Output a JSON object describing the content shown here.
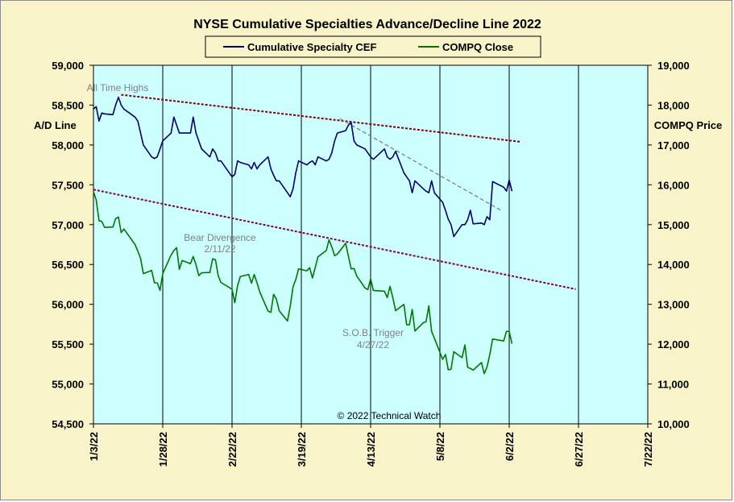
{
  "chart_data": {
    "type": "line",
    "title": "NYSE Cumulative Specialties Advance/Decline Line 2022",
    "ylabel": "A/D Line",
    "y2label": "COMPQ Price",
    "ylim": [
      54500,
      59000
    ],
    "y2lim": [
      10000,
      19000
    ],
    "y_ticks": [
      "54,500",
      "55,000",
      "55,500",
      "56,000",
      "56,500",
      "57,000",
      "57,500",
      "58,000",
      "58,500",
      "59,000"
    ],
    "y2_ticks": [
      "10,000",
      "11,000",
      "12,000",
      "13,000",
      "14,000",
      "15,000",
      "16,000",
      "17,000",
      "18,000",
      "19,000"
    ],
    "x_ticks": [
      "1/3/22",
      "1/28/22",
      "2/22/22",
      "3/19/22",
      "4/13/22",
      "5/8/22",
      "6/2/22",
      "6/27/22",
      "7/22/22"
    ],
    "x_range": [
      "2022-01-03",
      "2022-07-22"
    ],
    "legend": {
      "placement": "top-center",
      "entries": [
        "Cumulative Specialty CEF",
        "COMPQ Close"
      ]
    },
    "copyright": "© 2022 Technical Watch",
    "colors": {
      "ad_line": "#000066",
      "compq": "#007700",
      "plot_bg": "#ccffff",
      "frame_bg": "#f8f3c8",
      "trend": "#800000"
    },
    "series": [
      {
        "name": "Cumulative Specialty CEF",
        "axis": "left",
        "x": [
          "2022-01-03",
          "2022-01-04",
          "2022-01-05",
          "2022-01-06",
          "2022-01-07",
          "2022-01-10",
          "2022-01-11",
          "2022-01-12",
          "2022-01-13",
          "2022-01-14",
          "2022-01-18",
          "2022-01-19",
          "2022-01-20",
          "2022-01-21",
          "2022-01-24",
          "2022-01-25",
          "2022-01-26",
          "2022-01-27",
          "2022-01-28",
          "2022-01-31",
          "2022-02-01",
          "2022-02-02",
          "2022-02-03",
          "2022-02-04",
          "2022-02-07",
          "2022-02-08",
          "2022-02-09",
          "2022-02-10",
          "2022-02-11",
          "2022-02-14",
          "2022-02-15",
          "2022-02-16",
          "2022-02-17",
          "2022-02-18",
          "2022-02-22",
          "2022-02-23",
          "2022-02-24",
          "2022-02-25",
          "2022-02-28",
          "2022-03-01",
          "2022-03-02",
          "2022-03-03",
          "2022-03-04",
          "2022-03-07",
          "2022-03-08",
          "2022-03-09",
          "2022-03-10",
          "2022-03-11",
          "2022-03-14",
          "2022-03-15",
          "2022-03-16",
          "2022-03-17",
          "2022-03-18",
          "2022-03-21",
          "2022-03-22",
          "2022-03-23",
          "2022-03-24",
          "2022-03-25",
          "2022-03-28",
          "2022-03-29",
          "2022-03-30",
          "2022-03-31",
          "2022-04-01",
          "2022-04-04",
          "2022-04-05",
          "2022-04-06",
          "2022-04-07",
          "2022-04-08",
          "2022-04-11",
          "2022-04-12",
          "2022-04-13",
          "2022-04-14",
          "2022-04-18",
          "2022-04-19",
          "2022-04-20",
          "2022-04-21",
          "2022-04-22",
          "2022-04-25",
          "2022-04-26",
          "2022-04-27",
          "2022-04-28",
          "2022-04-29",
          "2022-05-02",
          "2022-05-03",
          "2022-05-04",
          "2022-05-05",
          "2022-05-06",
          "2022-05-09",
          "2022-05-10",
          "2022-05-11",
          "2022-05-12",
          "2022-05-13",
          "2022-05-16",
          "2022-05-17",
          "2022-05-18",
          "2022-05-19",
          "2022-05-20",
          "2022-05-23",
          "2022-05-24",
          "2022-05-25",
          "2022-05-26",
          "2022-05-27",
          "2022-05-31",
          "2022-06-01",
          "2022-06-02",
          "2022-06-03"
        ],
        "values": [
          58450,
          58480,
          58300,
          58400,
          58390,
          58380,
          58500,
          58600,
          58500,
          58450,
          58350,
          58300,
          58150,
          58000,
          57850,
          57830,
          57850,
          57950,
          58050,
          58150,
          58350,
          58250,
          58150,
          58150,
          58150,
          58350,
          58150,
          58050,
          57950,
          57850,
          57950,
          57900,
          57800,
          57800,
          57600,
          57630,
          57800,
          57780,
          57750,
          57700,
          57780,
          57700,
          57750,
          57850,
          57700,
          57620,
          57550,
          57550,
          57400,
          57350,
          57450,
          57650,
          57800,
          57750,
          57780,
          57800,
          57750,
          57850,
          57800,
          57820,
          57900,
          58050,
          58150,
          58180,
          58250,
          58280,
          58050,
          58000,
          57950,
          57900,
          57850,
          57820,
          57950,
          57850,
          57820,
          57850,
          57920,
          57650,
          57600,
          57550,
          57400,
          57550,
          57450,
          57420,
          57400,
          57550,
          57400,
          57280,
          57180,
          57070,
          57000,
          56850,
          57000,
          57000,
          57060,
          57180,
          57010,
          57020,
          57000,
          57100,
          57060,
          57540,
          57470,
          57420,
          57560,
          57420
        ]
      },
      {
        "name": "COMPQ Close",
        "axis": "right",
        "x": [
          "2022-01-03",
          "2022-01-04",
          "2022-01-05",
          "2022-01-06",
          "2022-01-07",
          "2022-01-10",
          "2022-01-11",
          "2022-01-12",
          "2022-01-13",
          "2022-01-14",
          "2022-01-18",
          "2022-01-19",
          "2022-01-20",
          "2022-01-21",
          "2022-01-24",
          "2022-01-25",
          "2022-01-26",
          "2022-01-27",
          "2022-01-28",
          "2022-01-31",
          "2022-02-01",
          "2022-02-02",
          "2022-02-03",
          "2022-02-04",
          "2022-02-07",
          "2022-02-08",
          "2022-02-09",
          "2022-02-10",
          "2022-02-11",
          "2022-02-14",
          "2022-02-15",
          "2022-02-16",
          "2022-02-17",
          "2022-02-18",
          "2022-02-22",
          "2022-02-23",
          "2022-02-24",
          "2022-02-25",
          "2022-02-28",
          "2022-03-01",
          "2022-03-02",
          "2022-03-03",
          "2022-03-04",
          "2022-03-07",
          "2022-03-08",
          "2022-03-09",
          "2022-03-10",
          "2022-03-11",
          "2022-03-14",
          "2022-03-15",
          "2022-03-16",
          "2022-03-17",
          "2022-03-18",
          "2022-03-21",
          "2022-03-22",
          "2022-03-23",
          "2022-03-24",
          "2022-03-25",
          "2022-03-28",
          "2022-03-29",
          "2022-03-30",
          "2022-03-31",
          "2022-04-01",
          "2022-04-04",
          "2022-04-05",
          "2022-04-06",
          "2022-04-07",
          "2022-04-08",
          "2022-04-11",
          "2022-04-12",
          "2022-04-13",
          "2022-04-14",
          "2022-04-18",
          "2022-04-19",
          "2022-04-20",
          "2022-04-21",
          "2022-04-22",
          "2022-04-25",
          "2022-04-26",
          "2022-04-27",
          "2022-04-28",
          "2022-04-29",
          "2022-05-02",
          "2022-05-03",
          "2022-05-04",
          "2022-05-05",
          "2022-05-06",
          "2022-05-09",
          "2022-05-10",
          "2022-05-11",
          "2022-05-12",
          "2022-05-13",
          "2022-05-16",
          "2022-05-17",
          "2022-05-18",
          "2022-05-19",
          "2022-05-20",
          "2022-05-23",
          "2022-05-24",
          "2022-05-25",
          "2022-05-26",
          "2022-05-27",
          "2022-05-31",
          "2022-06-01",
          "2022-06-02",
          "2022-06-03"
        ],
        "values": [
          15830,
          15620,
          15100,
          15080,
          14930,
          14940,
          15150,
          15190,
          14800,
          14890,
          14500,
          14340,
          14150,
          13770,
          13850,
          13540,
          13540,
          13350,
          13770,
          14240,
          14350,
          14420,
          13880,
          14100,
          14020,
          14200,
          13990,
          13720,
          13790,
          13800,
          14140,
          14120,
          13720,
          13550,
          13380,
          13040,
          13470,
          13700,
          13750,
          13530,
          13750,
          13540,
          13310,
          12830,
          12800,
          13250,
          13130,
          12840,
          12580,
          12950,
          13440,
          13620,
          13890,
          13840,
          13920,
          13660,
          13920,
          14190,
          14350,
          14620,
          14440,
          14220,
          14260,
          14530,
          14200,
          13890,
          13900,
          13710,
          13410,
          13370,
          13640,
          13350,
          13330,
          13170,
          13450,
          13170,
          12840,
          13000,
          12490,
          12490,
          12870,
          12330,
          12540,
          12560,
          12960,
          12320,
          12150,
          11620,
          11740,
          11360,
          11370,
          11810,
          11660,
          11980,
          11420,
          11390,
          11350,
          11540,
          11260,
          11430,
          11740,
          12130,
          12080,
          12320,
          12320,
          12010
        ]
      }
    ],
    "trendlines": [
      {
        "axis": "left",
        "from": [
          "2022-01-13",
          58630
        ],
        "to": [
          "2022-06-06",
          58040
        ],
        "style": "dotted",
        "color": "#800000"
      },
      {
        "axis": "left",
        "from": [
          "2022-01-03",
          57440
        ],
        "to": [
          "2022-06-26",
          56190
        ],
        "style": "dotted",
        "color": "#800040"
      },
      {
        "axis": "left",
        "from": [
          "2022-04-02",
          58330
        ],
        "to": [
          "2022-05-30",
          57180
        ],
        "style": "dashed",
        "color": "#808080"
      }
    ],
    "annotations": [
      {
        "text": "All Time Highs"
      },
      {
        "text": "Bear Divergence",
        "text2": "2/11/22"
      },
      {
        "text": "S.O.B. Trigger",
        "text2": "4/27/22"
      }
    ]
  }
}
